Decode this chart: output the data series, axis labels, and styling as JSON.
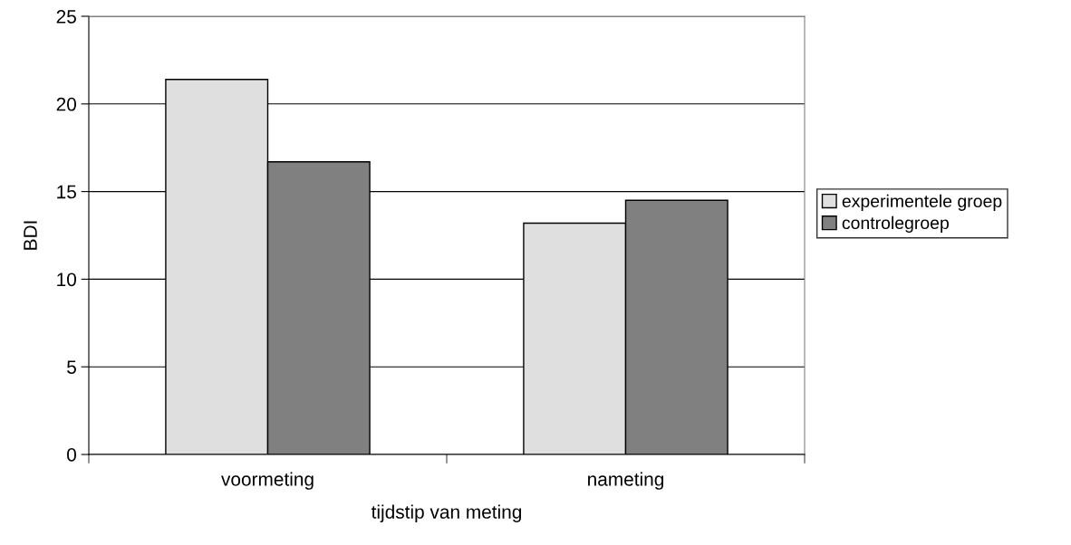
{
  "chart_data": {
    "type": "bar",
    "xlabel": "tijdstip van meting",
    "ylabel": "BDI",
    "categories": [
      "voormeting",
      "nameting"
    ],
    "series": [
      {
        "name": "experimentele groep",
        "color": "#dfdfdf",
        "values": [
          21.4,
          13.2
        ]
      },
      {
        "name": "controlegroep",
        "color": "#808080",
        "values": [
          16.7,
          14.5
        ]
      }
    ],
    "ylim": [
      0,
      25
    ],
    "yticks": [
      0,
      5,
      10,
      15,
      20,
      25
    ],
    "grid": "y",
    "legend": "right"
  }
}
